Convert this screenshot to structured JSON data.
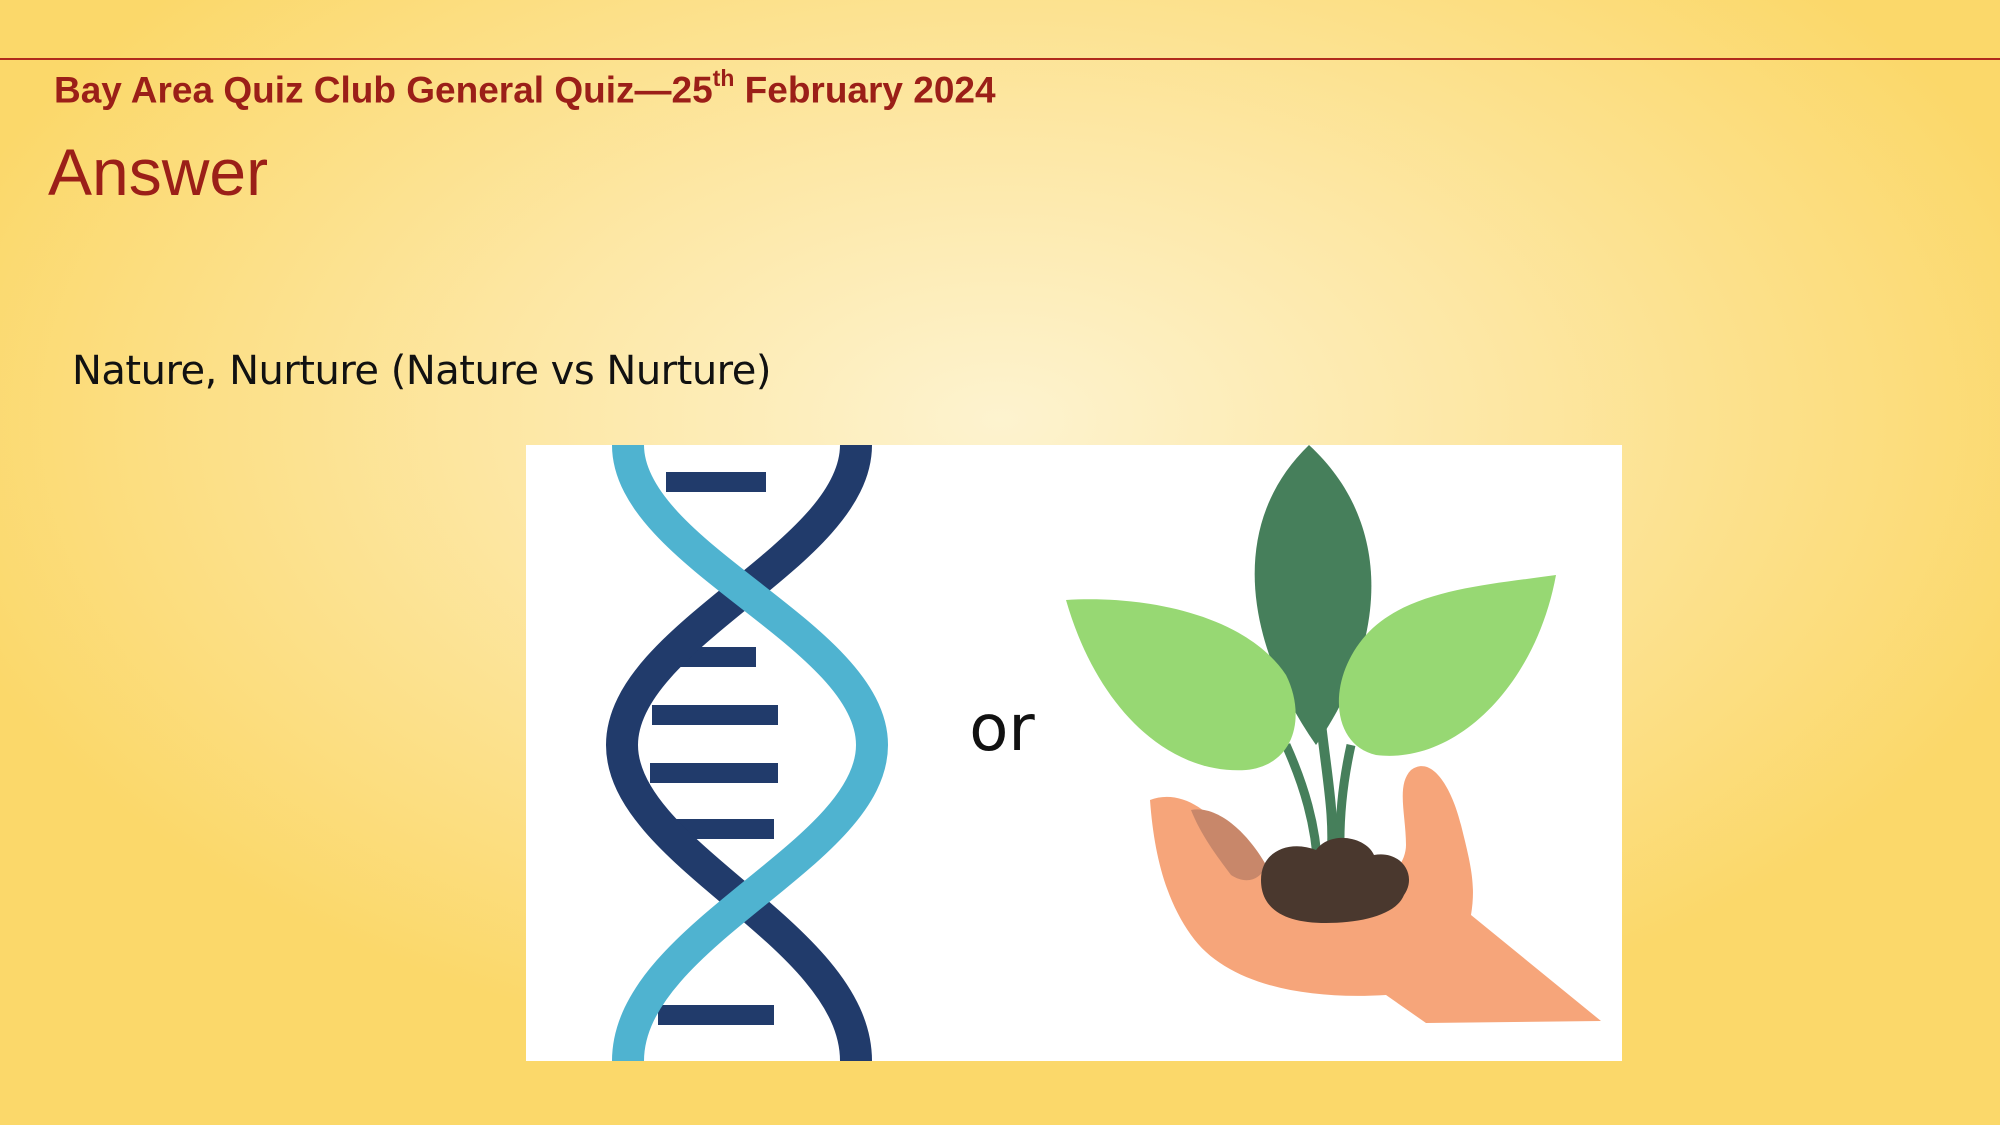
{
  "slide": {
    "header": {
      "main": "Bay Area Quiz Club General Quiz—25",
      "sup": "th",
      "rest": " February 2024"
    },
    "title": "Answer",
    "answer": "Nature, Nurture (Nature vs Nurture)"
  },
  "illustration": {
    "or_text": "or",
    "icons": [
      "dna-icon",
      "plant-in-hand-icon"
    ],
    "colors": {
      "dna_light": "#4fb3d0",
      "dna_dark": "#213b6b",
      "leaf_dark": "#467f5b",
      "leaf_light": "#97d873",
      "hand": "#f6a57a",
      "soil": "#4a382e"
    }
  }
}
